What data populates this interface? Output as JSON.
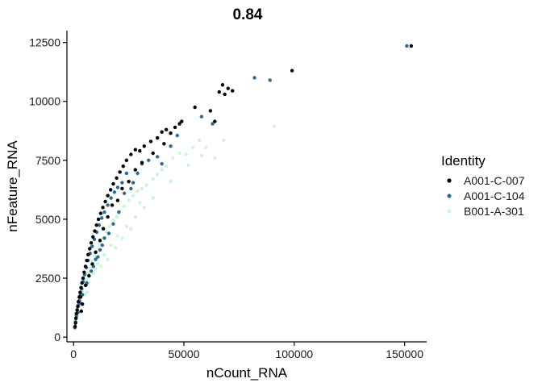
{
  "chart_data": {
    "type": "scatter",
    "title": "0.84",
    "xlabel": "nCount_RNA",
    "ylabel": "nFeature_RNA",
    "xlim": [
      -3000,
      160000
    ],
    "ylim": [
      -200,
      13000
    ],
    "xticks": [
      0,
      50000,
      100000,
      150000
    ],
    "xtick_labels": [
      "0",
      "50000",
      "100000",
      "150000"
    ],
    "yticks": [
      0,
      2500,
      5000,
      7500,
      10000,
      12500
    ],
    "ytick_labels": [
      "0",
      "2500",
      "5000",
      "7500",
      "10000",
      "12500"
    ],
    "grid": false,
    "legend_position": "right",
    "legend_title": "Identity",
    "series": [
      {
        "name": "A001-C-007",
        "color": "#000000",
        "points": [
          [
            700,
            450
          ],
          [
            900,
            600
          ],
          [
            1100,
            800
          ],
          [
            1300,
            1000
          ],
          [
            1600,
            1150
          ],
          [
            1900,
            1300
          ],
          [
            2200,
            1500
          ],
          [
            2600,
            1700
          ],
          [
            3000,
            1900
          ],
          [
            3400,
            2100
          ],
          [
            3800,
            2300
          ],
          [
            4300,
            2500
          ],
          [
            4800,
            2750
          ],
          [
            5400,
            3000
          ],
          [
            6000,
            3250
          ],
          [
            6600,
            3500
          ],
          [
            7300,
            3750
          ],
          [
            8000,
            4000
          ],
          [
            8800,
            4250
          ],
          [
            9600,
            4500
          ],
          [
            10400,
            4750
          ],
          [
            11300,
            5000
          ],
          [
            12300,
            5250
          ],
          [
            13300,
            5500
          ],
          [
            14400,
            5750
          ],
          [
            15500,
            6000
          ],
          [
            16800,
            6250
          ],
          [
            18000,
            6500
          ],
          [
            19500,
            6750
          ],
          [
            21000,
            7000
          ],
          [
            22500,
            7250
          ],
          [
            24000,
            7500
          ],
          [
            26000,
            7750
          ],
          [
            28000,
            7950
          ],
          [
            30000,
            7900
          ],
          [
            32000,
            8100
          ],
          [
            35000,
            8300
          ],
          [
            38000,
            8450
          ],
          [
            40000,
            8700
          ],
          [
            42000,
            8800
          ],
          [
            44000,
            8650
          ],
          [
            46000,
            8900
          ],
          [
            48000,
            9050
          ],
          [
            49000,
            9150
          ],
          [
            3500,
            1100
          ],
          [
            4000,
            1400
          ],
          [
            3200,
            1700
          ],
          [
            5500,
            2200
          ],
          [
            7000,
            2600
          ],
          [
            8500,
            3100
          ],
          [
            10000,
            3600
          ],
          [
            12000,
            4100
          ],
          [
            13500,
            4600
          ],
          [
            15500,
            5100
          ],
          [
            17500,
            5600
          ],
          [
            20000,
            5800
          ],
          [
            22000,
            6300
          ],
          [
            25000,
            6600
          ],
          [
            28000,
            7100
          ],
          [
            31000,
            7400
          ],
          [
            36000,
            7800
          ],
          [
            41000,
            8200
          ],
          [
            55000,
            9750
          ],
          [
            62000,
            9600
          ],
          [
            64000,
            9150
          ],
          [
            66000,
            10400
          ],
          [
            67500,
            10700
          ],
          [
            68500,
            10300
          ],
          [
            70000,
            10550
          ],
          [
            72000,
            10450
          ],
          [
            99000,
            11300
          ],
          [
            153000,
            12350
          ]
        ]
      },
      {
        "name": "A001-C-104",
        "color": "#2c6b95",
        "points": [
          [
            600,
            400
          ],
          [
            900,
            650
          ],
          [
            1300,
            900
          ],
          [
            1700,
            1150
          ],
          [
            2100,
            1350
          ],
          [
            2600,
            1550
          ],
          [
            3100,
            1800
          ],
          [
            3700,
            2050
          ],
          [
            4300,
            2350
          ],
          [
            5000,
            2650
          ],
          [
            5800,
            2950
          ],
          [
            6600,
            3250
          ],
          [
            7500,
            3550
          ],
          [
            8400,
            3850
          ],
          [
            9400,
            4150
          ],
          [
            10500,
            4450
          ],
          [
            11600,
            4750
          ],
          [
            12800,
            5050
          ],
          [
            14000,
            5300
          ],
          [
            15500,
            5600
          ],
          [
            17000,
            5900
          ],
          [
            18500,
            6150
          ],
          [
            20000,
            6350
          ],
          [
            22000,
            6550
          ],
          [
            24000,
            6950
          ],
          [
            26000,
            6300
          ],
          [
            29000,
            6950
          ],
          [
            31000,
            7350
          ],
          [
            34000,
            7500
          ],
          [
            38000,
            7650
          ],
          [
            40000,
            7350
          ],
          [
            44000,
            8100
          ],
          [
            47000,
            8550
          ],
          [
            16000,
            4400
          ],
          [
            13000,
            3900
          ],
          [
            11000,
            3400
          ],
          [
            9000,
            3000
          ],
          [
            7000,
            2600
          ],
          [
            5500,
            2200
          ],
          [
            4000,
            1800
          ],
          [
            3000,
            1450
          ],
          [
            2000,
            1050
          ],
          [
            6000,
            2300
          ],
          [
            8000,
            2800
          ],
          [
            10000,
            3300
          ],
          [
            12000,
            3700
          ],
          [
            14000,
            4200
          ],
          [
            18000,
            4800
          ],
          [
            20500,
            5300
          ],
          [
            23000,
            6100
          ],
          [
            27000,
            6550
          ],
          [
            58000,
            9350
          ],
          [
            63000,
            9050
          ],
          [
            82000,
            11000
          ],
          [
            89000,
            10900
          ],
          [
            151000,
            12350
          ]
        ]
      },
      {
        "name": "B001-A-301",
        "color": "#cdf5dc",
        "points": [
          [
            500,
            450
          ],
          [
            800,
            700
          ],
          [
            1200,
            900
          ],
          [
            1600,
            1100
          ],
          [
            2100,
            1300
          ],
          [
            2700,
            1500
          ],
          [
            3300,
            1750
          ],
          [
            4000,
            1950
          ],
          [
            4800,
            2200
          ],
          [
            5600,
            2450
          ],
          [
            6500,
            2700
          ],
          [
            7500,
            2950
          ],
          [
            8500,
            3200
          ],
          [
            9600,
            3450
          ],
          [
            10800,
            3700
          ],
          [
            12000,
            3950
          ],
          [
            13500,
            4200
          ],
          [
            15000,
            4450
          ],
          [
            16500,
            4700
          ],
          [
            18000,
            4950
          ],
          [
            19500,
            5100
          ],
          [
            21000,
            5350
          ],
          [
            23000,
            5550
          ],
          [
            25000,
            5800
          ],
          [
            27000,
            6000
          ],
          [
            29000,
            6200
          ],
          [
            31000,
            6300
          ],
          [
            33000,
            6450
          ],
          [
            36000,
            6700
          ],
          [
            38000,
            6900
          ],
          [
            40000,
            7100
          ],
          [
            42000,
            7250
          ],
          [
            45000,
            7600
          ],
          [
            48000,
            7800
          ],
          [
            51000,
            7750
          ],
          [
            54000,
            8050
          ],
          [
            57000,
            8350
          ],
          [
            60000,
            8050
          ],
          [
            68000,
            8350
          ],
          [
            91000,
            8950
          ],
          [
            5000,
            1800
          ],
          [
            7000,
            2300
          ],
          [
            9000,
            2700
          ],
          [
            11000,
            3100
          ],
          [
            14000,
            3500
          ],
          [
            17000,
            3900
          ],
          [
            20000,
            4300
          ],
          [
            24000,
            4700
          ],
          [
            28000,
            5100
          ],
          [
            32000,
            5500
          ],
          [
            36000,
            5900
          ],
          [
            44000,
            6600
          ],
          [
            52000,
            7300
          ],
          [
            58000,
            7700
          ],
          [
            64000,
            7600
          ],
          [
            12500,
            3000
          ],
          [
            15500,
            3300
          ],
          [
            19000,
            3800
          ],
          [
            22000,
            4200
          ],
          [
            26000,
            4600
          ],
          [
            6000,
            1900
          ],
          [
            3000,
            1300
          ],
          [
            10000,
            2900
          ],
          [
            30000,
            5700
          ]
        ]
      }
    ]
  }
}
